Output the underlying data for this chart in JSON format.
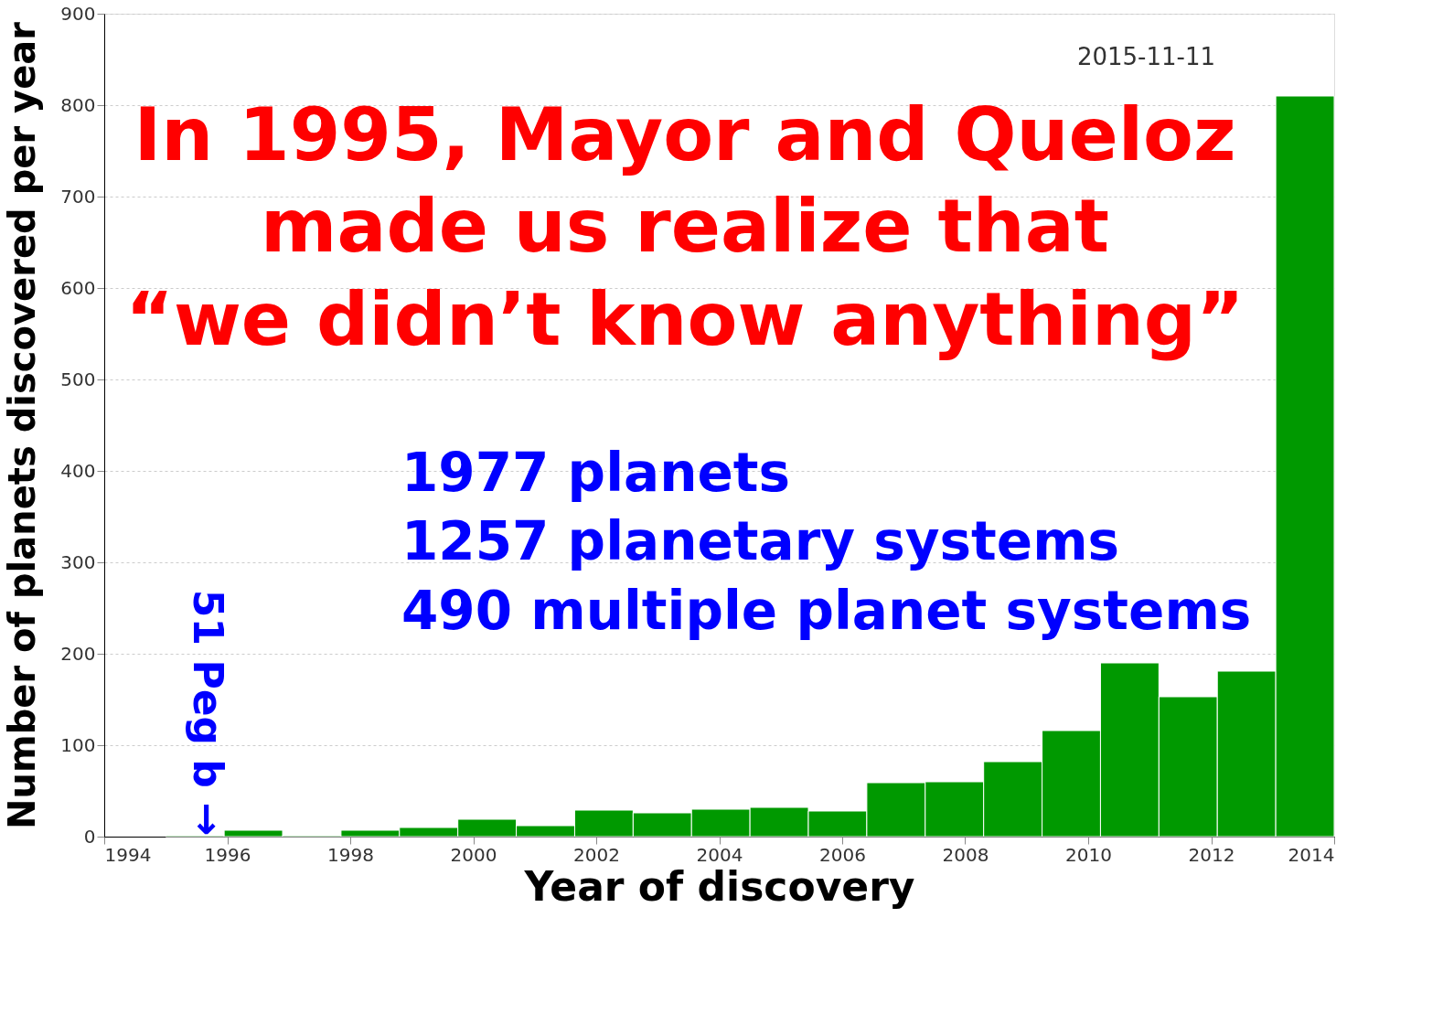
{
  "chart_data": {
    "type": "histogram",
    "xlabel": "Year of discovery",
    "ylabel": "Number of planets discovered per year",
    "bins": [
      1995,
      1995.95,
      1996.9,
      1997.85,
      1998.8,
      1999.75,
      2000.7,
      2001.65,
      2002.6,
      2003.55,
      2004.5,
      2005.45,
      2006.4,
      2007.35,
      2008.3,
      2009.25,
      2010.2,
      2011.15,
      2012.1,
      2013.05,
      2014
    ],
    "values": [
      1,
      7,
      1,
      7,
      10,
      19,
      12,
      29,
      26,
      30,
      32,
      28,
      59,
      60,
      82,
      116,
      190,
      153,
      181,
      810
    ],
    "color": "#009900",
    "xlim": [
      1994,
      2014
    ],
    "xticks": [
      1994,
      1996,
      1998,
      2000,
      2002,
      2004,
      2006,
      2008,
      2010,
      2012,
      2014
    ],
    "ylim": [
      0,
      900
    ],
    "yticks": [
      0,
      100,
      200,
      300,
      400,
      500,
      600,
      700,
      800,
      900
    ],
    "grid": "y",
    "annotations": [
      "2015-11-11",
      "In 1995, Mayor and Queloz",
      "made us realize that",
      "“we didn’t know anything”",
      "1977 planets",
      "1257 planetary systems",
      "490 multiple planet systems",
      {
        "text": "51 Peg b →",
        "x": 1995.5,
        "y": 1
      }
    ]
  }
}
